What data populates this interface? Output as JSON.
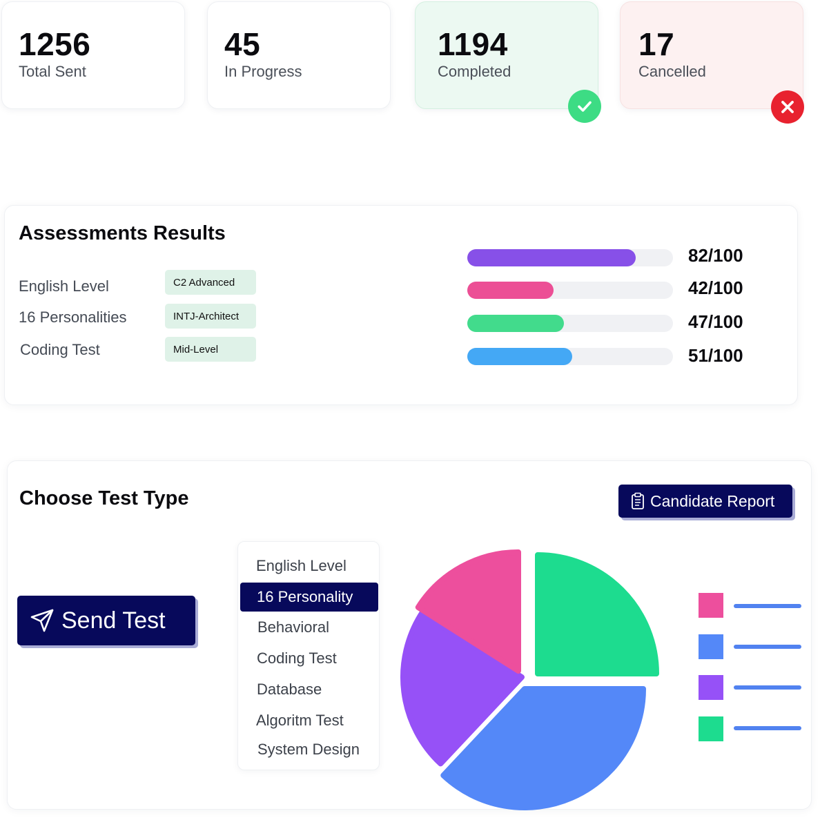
{
  "stats": [
    {
      "value": "1256",
      "label": "Total Sent",
      "status": "neutral"
    },
    {
      "value": "45",
      "label": "In Progress",
      "status": "neutral"
    },
    {
      "value": "1194",
      "label": "Completed",
      "status": "success",
      "icon": "check-circle-icon",
      "color": "#3ddc84"
    },
    {
      "value": "17",
      "label": "Cancelled",
      "status": "error",
      "icon": "x-circle-icon",
      "color": "#e8222f"
    }
  ],
  "assessments": {
    "title": "Assessments Results",
    "rows": [
      {
        "label": "English Level",
        "result": "C2 Advanced"
      },
      {
        "label": "16 Personalities",
        "result": "INTJ-Architect"
      },
      {
        "label": "Coding Test",
        "result": "Mid-Level"
      }
    ],
    "scores": [
      {
        "text": "82/100",
        "value": 82,
        "max": 100,
        "color": "#8750e8"
      },
      {
        "text": "42/100",
        "value": 42,
        "max": 100,
        "color": "#ec4f95"
      },
      {
        "text": "47/100",
        "value": 47,
        "max": 100,
        "color": "#42db8c"
      },
      {
        "text": "51/100",
        "value": 51,
        "max": 100,
        "color": "#44a8f5"
      }
    ]
  },
  "test_type": {
    "title": "Choose Test Type",
    "report_button": {
      "label": "Candidate Report",
      "icon": "clipboard-icon"
    },
    "send_button": {
      "label": "Send Test",
      "icon": "send-icon"
    },
    "options": [
      "English Level",
      "16 Personality",
      "Behavioral",
      "Coding Test",
      "Database",
      "Algoritm Test",
      "System Design"
    ],
    "selected_option": "16 Personality"
  },
  "chart_data": {
    "type": "pie",
    "slices": [
      {
        "value": 25,
        "color": "#1ddc8f"
      },
      {
        "value": 37,
        "color": "#5488f8"
      },
      {
        "value": 22,
        "color": "#9651f7"
      },
      {
        "value": 16,
        "color": "#ed4f9d"
      }
    ],
    "legend": [
      {
        "color": "#ed4f9d"
      },
      {
        "color": "#5488f8"
      },
      {
        "color": "#9651f7"
      },
      {
        "color": "#1ddc8f"
      }
    ],
    "legend_placement": "right"
  }
}
